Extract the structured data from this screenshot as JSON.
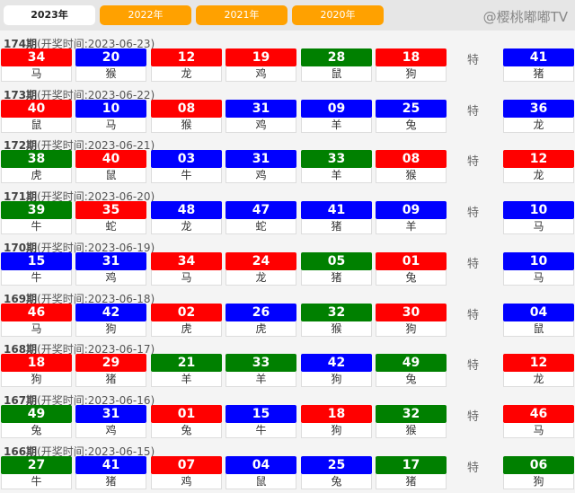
{
  "tabs": [
    {
      "label": "2023年",
      "active": true
    },
    {
      "label": "2022年"
    },
    {
      "label": "2021年"
    },
    {
      "label": "2020年"
    }
  ],
  "special_label": "特",
  "colors": {
    "r": "#ff0000",
    "b": "#0000ff",
    "g": "#008000"
  },
  "watermark": "@樱桃嘟嘟TV",
  "draws": [
    {
      "period": "174期",
      "time": "(开奖时间:2023-06-23)",
      "balls": [
        [
          "34",
          "r",
          "马"
        ],
        [
          "20",
          "b",
          "猴"
        ],
        [
          "12",
          "r",
          "龙"
        ],
        [
          "19",
          "r",
          "鸡"
        ],
        [
          "28",
          "g",
          "鼠"
        ],
        [
          "18",
          "r",
          "狗"
        ]
      ],
      "special": [
        "41",
        "b",
        "猪"
      ]
    },
    {
      "period": "173期",
      "time": "(开奖时间:2023-06-22)",
      "balls": [
        [
          "40",
          "r",
          "鼠"
        ],
        [
          "10",
          "b",
          "马"
        ],
        [
          "08",
          "r",
          "猴"
        ],
        [
          "31",
          "b",
          "鸡"
        ],
        [
          "09",
          "b",
          "羊"
        ],
        [
          "25",
          "b",
          "兔"
        ]
      ],
      "special": [
        "36",
        "b",
        "龙"
      ]
    },
    {
      "period": "172期",
      "time": "(开奖时间:2023-06-21)",
      "balls": [
        [
          "38",
          "g",
          "虎"
        ],
        [
          "40",
          "r",
          "鼠"
        ],
        [
          "03",
          "b",
          "牛"
        ],
        [
          "31",
          "b",
          "鸡"
        ],
        [
          "33",
          "g",
          "羊"
        ],
        [
          "08",
          "r",
          "猴"
        ]
      ],
      "special": [
        "12",
        "r",
        "龙"
      ]
    },
    {
      "period": "171期",
      "time": "(开奖时间:2023-06-20)",
      "balls": [
        [
          "39",
          "g",
          "牛"
        ],
        [
          "35",
          "r",
          "蛇"
        ],
        [
          "48",
          "b",
          "龙"
        ],
        [
          "47",
          "b",
          "蛇"
        ],
        [
          "41",
          "b",
          "猪"
        ],
        [
          "09",
          "b",
          "羊"
        ]
      ],
      "special": [
        "10",
        "b",
        "马"
      ]
    },
    {
      "period": "170期",
      "time": "(开奖时间:2023-06-19)",
      "balls": [
        [
          "15",
          "b",
          "牛"
        ],
        [
          "31",
          "b",
          "鸡"
        ],
        [
          "34",
          "r",
          "马"
        ],
        [
          "24",
          "r",
          "龙"
        ],
        [
          "05",
          "g",
          "猪"
        ],
        [
          "01",
          "r",
          "兔"
        ]
      ],
      "special": [
        "10",
        "b",
        "马"
      ]
    },
    {
      "period": "169期",
      "time": "(开奖时间:2023-06-18)",
      "balls": [
        [
          "46",
          "r",
          "马"
        ],
        [
          "42",
          "b",
          "狗"
        ],
        [
          "02",
          "r",
          "虎"
        ],
        [
          "26",
          "b",
          "虎"
        ],
        [
          "32",
          "g",
          "猴"
        ],
        [
          "30",
          "r",
          "狗"
        ]
      ],
      "special": [
        "04",
        "b",
        "鼠"
      ]
    },
    {
      "period": "168期",
      "time": "(开奖时间:2023-06-17)",
      "balls": [
        [
          "18",
          "r",
          "狗"
        ],
        [
          "29",
          "r",
          "猪"
        ],
        [
          "21",
          "g",
          "羊"
        ],
        [
          "33",
          "g",
          "羊"
        ],
        [
          "42",
          "b",
          "狗"
        ],
        [
          "49",
          "g",
          "兔"
        ]
      ],
      "special": [
        "12",
        "r",
        "龙"
      ]
    },
    {
      "period": "167期",
      "time": "(开奖时间:2023-06-16)",
      "balls": [
        [
          "49",
          "g",
          "兔"
        ],
        [
          "31",
          "b",
          "鸡"
        ],
        [
          "01",
          "r",
          "兔"
        ],
        [
          "15",
          "b",
          "牛"
        ],
        [
          "18",
          "r",
          "狗"
        ],
        [
          "32",
          "g",
          "猴"
        ]
      ],
      "special": [
        "46",
        "r",
        "马"
      ]
    },
    {
      "period": "166期",
      "time": "(开奖时间:2023-06-15)",
      "balls": [
        [
          "27",
          "g",
          "牛"
        ],
        [
          "41",
          "b",
          "猪"
        ],
        [
          "07",
          "r",
          "鸡"
        ],
        [
          "04",
          "b",
          "鼠"
        ],
        [
          "25",
          "b",
          "兔"
        ],
        [
          "17",
          "g",
          "猪"
        ]
      ],
      "special": [
        "06",
        "g",
        "狗"
      ]
    }
  ]
}
